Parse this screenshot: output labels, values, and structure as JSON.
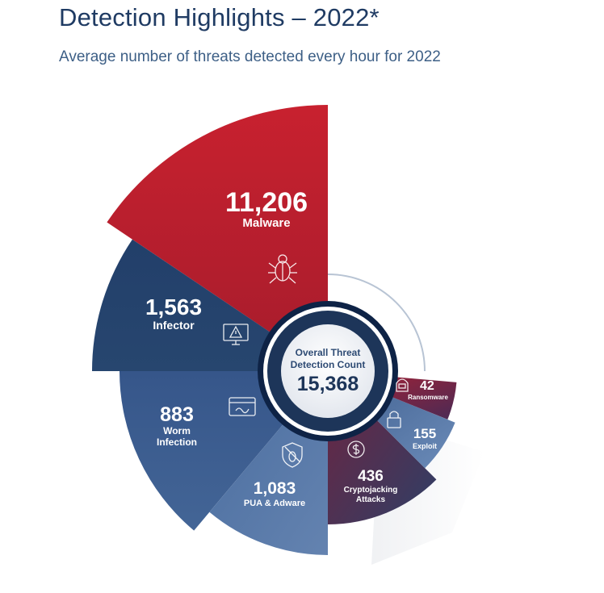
{
  "header": {
    "title": "Detection Highlights – 2022*",
    "subtitle": "Average number of threats detected every hour for 2022"
  },
  "chart_data": {
    "type": "pie",
    "title": "Detection Highlights – 2022*",
    "subtitle": "Average number of threats detected every hour for 2022",
    "center": {
      "label_line1": "Overall Threat",
      "label_line2": "Detection Count",
      "total": 15368,
      "total_label": "15,368"
    },
    "categories": [
      "Malware",
      "Infector",
      "Worm Infection",
      "PUA & Adware",
      "Cryptojacking Attacks",
      "Exploit",
      "Ransomware"
    ],
    "values": [
      11206,
      1563,
      883,
      1083,
      436,
      155,
      42
    ],
    "slices": [
      {
        "label": "Malware",
        "label_lines": [
          "Malware"
        ],
        "value": 11206,
        "value_label": "11,206",
        "icon": "bug-icon",
        "color": "#c0202e"
      },
      {
        "label": "Infector",
        "label_lines": [
          "Infector"
        ],
        "value": 1563,
        "value_label": "1,563",
        "icon": "monitor-warning-icon",
        "color": "#24416c"
      },
      {
        "label": "Worm Infection",
        "label_lines": [
          "Worm",
          "Infection"
        ],
        "value": 883,
        "value_label": "883",
        "icon": "browser-worm-icon",
        "color": "#3d5f8e"
      },
      {
        "label": "PUA & Adware",
        "label_lines": [
          "PUA & Adware"
        ],
        "value": 1083,
        "value_label": "1,083",
        "icon": "shield-bug-icon",
        "color": "#5476a6"
      },
      {
        "label": "Cryptojacking Attacks",
        "label_lines": [
          "Cryptojacking",
          "Attacks"
        ],
        "value": 436,
        "value_label": "436",
        "icon": "dollar-coin-icon",
        "color": "#7a2840"
      },
      {
        "label": "Exploit",
        "label_lines": [
          "Exploit"
        ],
        "value": 155,
        "value_label": "155",
        "icon": "lock-icon",
        "color": "#4d6e9c"
      },
      {
        "label": "Ransomware",
        "label_lines": [
          "Ransomware"
        ],
        "value": 42,
        "value_label": "42",
        "icon": "hacker-icon",
        "color": "#6b2038"
      }
    ]
  }
}
